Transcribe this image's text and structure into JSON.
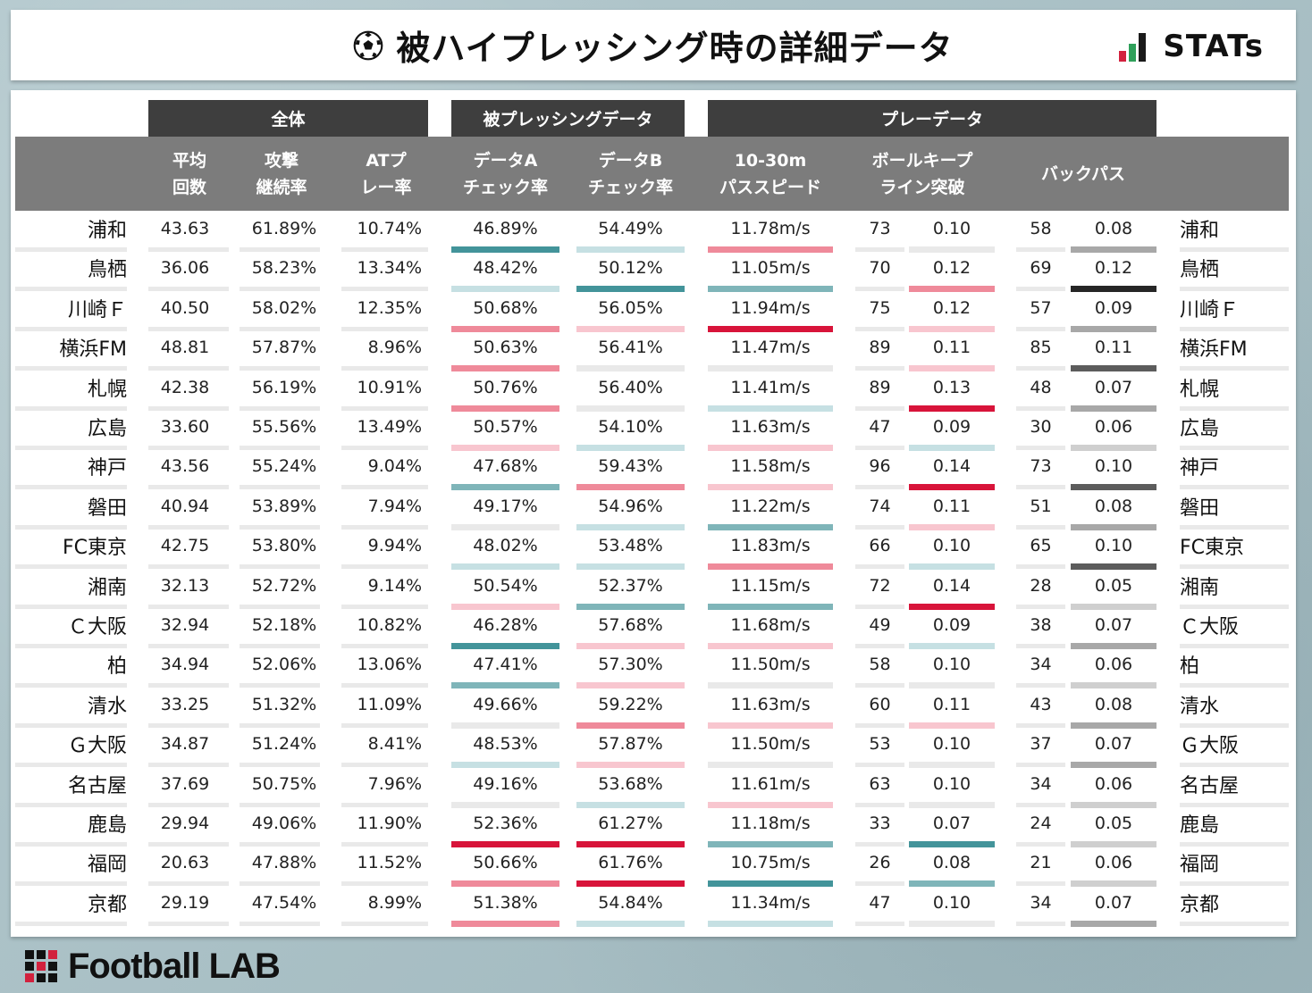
{
  "header": {
    "title": "被ハイプレッシング時の詳細データ",
    "logo_text": "STATs",
    "ball_icon": "soccer-ball-icon",
    "logo_bar_colors": [
      "#d2213d",
      "#2fa05a",
      "#1a1a1a"
    ]
  },
  "footer": {
    "brand": "Football LAB"
  },
  "colors": {
    "group_header": "#3e3e3e",
    "column_header": "#7c7c7c",
    "neutral": "#e9e9e9",
    "high_strong": "#d8143a",
    "high_mid": "#ef8a9a",
    "high_light": "#f8c6cf",
    "low_light": "#c6e0e3",
    "low_mid": "#7fb5b9",
    "low_strong": "#43949a",
    "gray_light": "#cfcfcf",
    "gray_mid": "#a8a8a8",
    "gray_dark": "#5c5c5c",
    "gray_black": "#262626"
  },
  "chart_data": {
    "type": "table",
    "groups": [
      {
        "label": "全体"
      },
      {
        "label": "被プレッシングデータ"
      },
      {
        "label": "プレーデータ"
      }
    ],
    "columns": [
      {
        "line1": "平均",
        "line2": "回数"
      },
      {
        "line1": "攻撃",
        "line2": "継続率"
      },
      {
        "line1": "ATプ",
        "line2": "レー率"
      },
      {
        "line1": "データA",
        "line2": "チェック率"
      },
      {
        "line1": "データB",
        "line2": "チェック率"
      },
      {
        "line1": "10-30m",
        "line2": "パススピード"
      },
      {
        "line1": "ボールキープ",
        "line2": "ライン突破"
      },
      {
        "line1": "バックパス",
        "line2": ""
      }
    ],
    "rows": [
      {
        "team": "浦和",
        "avg": "43.63",
        "continue": "61.89%",
        "at": "10.74%",
        "a": "46.89%",
        "a_c": "low_strong",
        "b": "54.49%",
        "b_c": "low_light",
        "speed": "11.78m/s",
        "speed_c": "high_mid",
        "keep_n": "73",
        "keep": "0.10",
        "keep_c": "neutral",
        "back_n": "58",
        "back": "0.08",
        "back_c": "gray_mid"
      },
      {
        "team": "鳥栖",
        "avg": "36.06",
        "continue": "58.23%",
        "at": "13.34%",
        "a": "48.42%",
        "a_c": "low_light",
        "b": "50.12%",
        "b_c": "low_strong",
        "speed": "11.05m/s",
        "speed_c": "low_mid",
        "keep_n": "70",
        "keep": "0.12",
        "keep_c": "high_mid",
        "back_n": "69",
        "back": "0.12",
        "back_c": "gray_black"
      },
      {
        "team": "川崎Ｆ",
        "avg": "40.50",
        "continue": "58.02%",
        "at": "12.35%",
        "a": "50.68%",
        "a_c": "high_mid",
        "b": "56.05%",
        "b_c": "high_light",
        "speed": "11.94m/s",
        "speed_c": "high_strong",
        "keep_n": "75",
        "keep": "0.12",
        "keep_c": "high_light",
        "back_n": "57",
        "back": "0.09",
        "back_c": "gray_mid"
      },
      {
        "team": "横浜FM",
        "avg": "48.81",
        "continue": "57.87%",
        "at": "8.96%",
        "a": "50.63%",
        "a_c": "high_mid",
        "b": "56.41%",
        "b_c": "neutral",
        "speed": "11.47m/s",
        "speed_c": "neutral",
        "keep_n": "89",
        "keep": "0.11",
        "keep_c": "high_light",
        "back_n": "85",
        "back": "0.11",
        "back_c": "gray_dark"
      },
      {
        "team": "札幌",
        "avg": "42.38",
        "continue": "56.19%",
        "at": "10.91%",
        "a": "50.76%",
        "a_c": "high_mid",
        "b": "56.40%",
        "b_c": "neutral",
        "speed": "11.41m/s",
        "speed_c": "low_light",
        "keep_n": "89",
        "keep": "0.13",
        "keep_c": "high_strong",
        "back_n": "48",
        "back": "0.07",
        "back_c": "gray_mid"
      },
      {
        "team": "広島",
        "avg": "33.60",
        "continue": "55.56%",
        "at": "13.49%",
        "a": "50.57%",
        "a_c": "high_light",
        "b": "54.10%",
        "b_c": "low_light",
        "speed": "11.63m/s",
        "speed_c": "high_light",
        "keep_n": "47",
        "keep": "0.09",
        "keep_c": "low_light",
        "back_n": "30",
        "back": "0.06",
        "back_c": "gray_light"
      },
      {
        "team": "神戸",
        "avg": "43.56",
        "continue": "55.24%",
        "at": "9.04%",
        "a": "47.68%",
        "a_c": "low_mid",
        "b": "59.43%",
        "b_c": "high_mid",
        "speed": "11.58m/s",
        "speed_c": "high_light",
        "keep_n": "96",
        "keep": "0.14",
        "keep_c": "high_strong",
        "back_n": "73",
        "back": "0.10",
        "back_c": "gray_dark"
      },
      {
        "team": "磐田",
        "avg": "40.94",
        "continue": "53.89%",
        "at": "7.94%",
        "a": "49.17%",
        "a_c": "neutral",
        "b": "54.96%",
        "b_c": "low_light",
        "speed": "11.22m/s",
        "speed_c": "low_mid",
        "keep_n": "74",
        "keep": "0.11",
        "keep_c": "high_light",
        "back_n": "51",
        "back": "0.08",
        "back_c": "gray_mid"
      },
      {
        "team": "FC東京",
        "avg": "42.75",
        "continue": "53.80%",
        "at": "9.94%",
        "a": "48.02%",
        "a_c": "low_light",
        "b": "53.48%",
        "b_c": "low_light",
        "speed": "11.83m/s",
        "speed_c": "high_mid",
        "keep_n": "66",
        "keep": "0.10",
        "keep_c": "low_light",
        "back_n": "65",
        "back": "0.10",
        "back_c": "gray_dark"
      },
      {
        "team": "湘南",
        "avg": "32.13",
        "continue": "52.72%",
        "at": "9.14%",
        "a": "50.54%",
        "a_c": "high_light",
        "b": "52.37%",
        "b_c": "low_mid",
        "speed": "11.15m/s",
        "speed_c": "low_mid",
        "keep_n": "72",
        "keep": "0.14",
        "keep_c": "high_strong",
        "back_n": "28",
        "back": "0.05",
        "back_c": "gray_light"
      },
      {
        "team": "Ｃ大阪",
        "avg": "32.94",
        "continue": "52.18%",
        "at": "10.82%",
        "a": "46.28%",
        "a_c": "low_strong",
        "b": "57.68%",
        "b_c": "high_light",
        "speed": "11.68m/s",
        "speed_c": "high_light",
        "keep_n": "49",
        "keep": "0.09",
        "keep_c": "low_light",
        "back_n": "38",
        "back": "0.07",
        "back_c": "gray_mid"
      },
      {
        "team": "柏",
        "avg": "34.94",
        "continue": "52.06%",
        "at": "13.06%",
        "a": "47.41%",
        "a_c": "low_mid",
        "b": "57.30%",
        "b_c": "high_light",
        "speed": "11.50m/s",
        "speed_c": "neutral",
        "keep_n": "58",
        "keep": "0.10",
        "keep_c": "neutral",
        "back_n": "34",
        "back": "0.06",
        "back_c": "gray_light"
      },
      {
        "team": "清水",
        "avg": "33.25",
        "continue": "51.32%",
        "at": "11.09%",
        "a": "49.66%",
        "a_c": "neutral",
        "b": "59.22%",
        "b_c": "high_mid",
        "speed": "11.63m/s",
        "speed_c": "high_light",
        "keep_n": "60",
        "keep": "0.11",
        "keep_c": "high_light",
        "back_n": "43",
        "back": "0.08",
        "back_c": "gray_mid"
      },
      {
        "team": "Ｇ大阪",
        "avg": "34.87",
        "continue": "51.24%",
        "at": "8.41%",
        "a": "48.53%",
        "a_c": "low_light",
        "b": "57.87%",
        "b_c": "high_light",
        "speed": "11.50m/s",
        "speed_c": "neutral",
        "keep_n": "53",
        "keep": "0.10",
        "keep_c": "neutral",
        "back_n": "37",
        "back": "0.07",
        "back_c": "gray_mid"
      },
      {
        "team": "名古屋",
        "avg": "37.69",
        "continue": "50.75%",
        "at": "7.96%",
        "a": "49.16%",
        "a_c": "neutral",
        "b": "53.68%",
        "b_c": "low_light",
        "speed": "11.61m/s",
        "speed_c": "high_light",
        "keep_n": "63",
        "keep": "0.10",
        "keep_c": "neutral",
        "back_n": "34",
        "back": "0.06",
        "back_c": "gray_light"
      },
      {
        "team": "鹿島",
        "avg": "29.94",
        "continue": "49.06%",
        "at": "11.90%",
        "a": "52.36%",
        "a_c": "high_strong",
        "b": "61.27%",
        "b_c": "high_strong",
        "speed": "11.18m/s",
        "speed_c": "low_mid",
        "keep_n": "33",
        "keep": "0.07",
        "keep_c": "low_strong",
        "back_n": "24",
        "back": "0.05",
        "back_c": "gray_light"
      },
      {
        "team": "福岡",
        "avg": "20.63",
        "continue": "47.88%",
        "at": "11.52%",
        "a": "50.66%",
        "a_c": "high_mid",
        "b": "61.76%",
        "b_c": "high_strong",
        "speed": "10.75m/s",
        "speed_c": "low_strong",
        "keep_n": "26",
        "keep": "0.08",
        "keep_c": "low_mid",
        "back_n": "21",
        "back": "0.06",
        "back_c": "gray_light"
      },
      {
        "team": "京都",
        "avg": "29.19",
        "continue": "47.54%",
        "at": "8.99%",
        "a": "51.38%",
        "a_c": "high_mid",
        "b": "54.84%",
        "b_c": "low_light",
        "speed": "11.34m/s",
        "speed_c": "low_light",
        "keep_n": "47",
        "keep": "0.10",
        "keep_c": "neutral",
        "back_n": "34",
        "back": "0.07",
        "back_c": "gray_mid"
      }
    ]
  }
}
